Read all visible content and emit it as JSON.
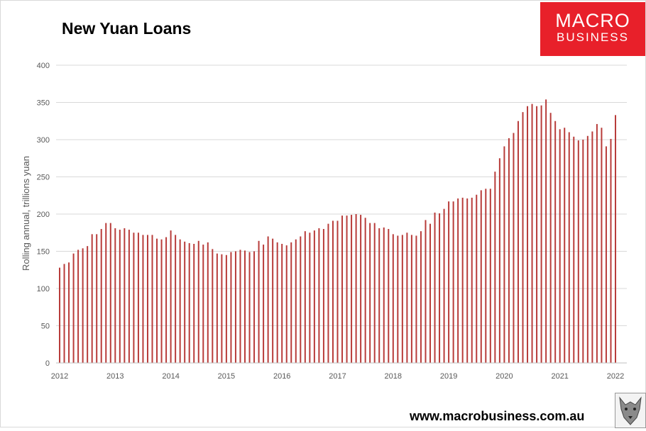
{
  "brand": {
    "line1": "MACRO",
    "line2": "BUSINESS",
    "color": "#e8202a"
  },
  "website": "www.macrobusiness.com.au",
  "chart_data": {
    "type": "bar",
    "title": "New Yuan Loans",
    "ylabel": "Rolling annual, trillions yuan",
    "xlabel": "",
    "ylim": [
      0,
      400
    ],
    "yticks": [
      0,
      50,
      100,
      150,
      200,
      250,
      300,
      350,
      400
    ],
    "xticks": [
      "2012",
      "2013",
      "2014",
      "2015",
      "2016",
      "2017",
      "2018",
      "2019",
      "2020",
      "2021",
      "2022"
    ],
    "xlim": [
      "2012-01",
      "2022-01"
    ],
    "grid": true,
    "bar_color": "#b83c3a",
    "start": "2012-01",
    "values": [
      128,
      133,
      135,
      147,
      152,
      154,
      157,
      173,
      173,
      180,
      188,
      188,
      181,
      179,
      181,
      179,
      175,
      175,
      172,
      172,
      172,
      167,
      166,
      169,
      178,
      172,
      166,
      163,
      161,
      160,
      164,
      159,
      162,
      153,
      147,
      146,
      145,
      149,
      150,
      152,
      151,
      149,
      150,
      164,
      159,
      170,
      167,
      162,
      160,
      158,
      162,
      166,
      170,
      177,
      175,
      178,
      181,
      180,
      187,
      191,
      191,
      198,
      198,
      199,
      200,
      199,
      195,
      188,
      188,
      181,
      182,
      180,
      173,
      171,
      172,
      175,
      172,
      171,
      177,
      192,
      187,
      202,
      201,
      207,
      217,
      217,
      221,
      222,
      221,
      222,
      226,
      232,
      234,
      234,
      257,
      275,
      291,
      302,
      309,
      325,
      337,
      345,
      348,
      345,
      346,
      354,
      336,
      325,
      314,
      316,
      310,
      304,
      299,
      300,
      305,
      311,
      321,
      316,
      291,
      301,
      333
    ]
  }
}
